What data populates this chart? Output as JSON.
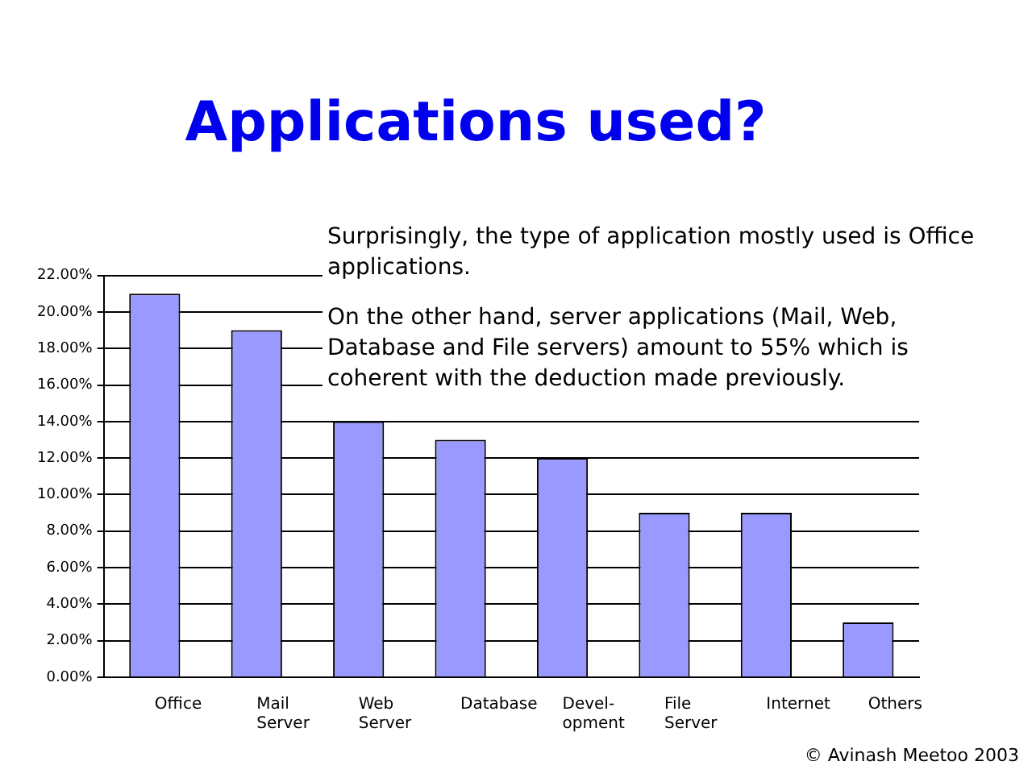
{
  "chart_data": {
    "type": "bar",
    "title": "Applications used?",
    "categories": [
      "Office",
      "Mail\nServer",
      "Web\nServer",
      "Database",
      "Devel-\nopment",
      "File\nServer",
      "Internet",
      "Others"
    ],
    "values": [
      21,
      19,
      14,
      13,
      12,
      9,
      9,
      3
    ],
    "color": "#9999ff",
    "ylim": [
      0,
      22
    ],
    "yticks": [
      {
        "value": 0,
        "label": "0.00%"
      },
      {
        "value": 2,
        "label": "2.00%"
      },
      {
        "value": 4,
        "label": "4.00%"
      },
      {
        "value": 6,
        "label": "6.00%"
      },
      {
        "value": 8,
        "label": "8.00%"
      },
      {
        "value": 10,
        "label": "10.00%"
      },
      {
        "value": 12,
        "label": "12.00%"
      },
      {
        "value": 14,
        "label": "14.00%"
      },
      {
        "value": 16,
        "label": "16.00%"
      },
      {
        "value": 18,
        "label": "18.00%"
      },
      {
        "value": 20,
        "label": "20.00%"
      },
      {
        "value": 22,
        "label": "22.00%"
      }
    ],
    "grid": "y",
    "legend": false,
    "annotations": [
      "Surprisingly, the type of application mostly used is Office applications.",
      "On the other hand, server applications (Mail, Web, Database and File servers) amount to 55% which is coherent with the deduction made previously.",
      "© Avinash Meetoo 2003"
    ]
  }
}
